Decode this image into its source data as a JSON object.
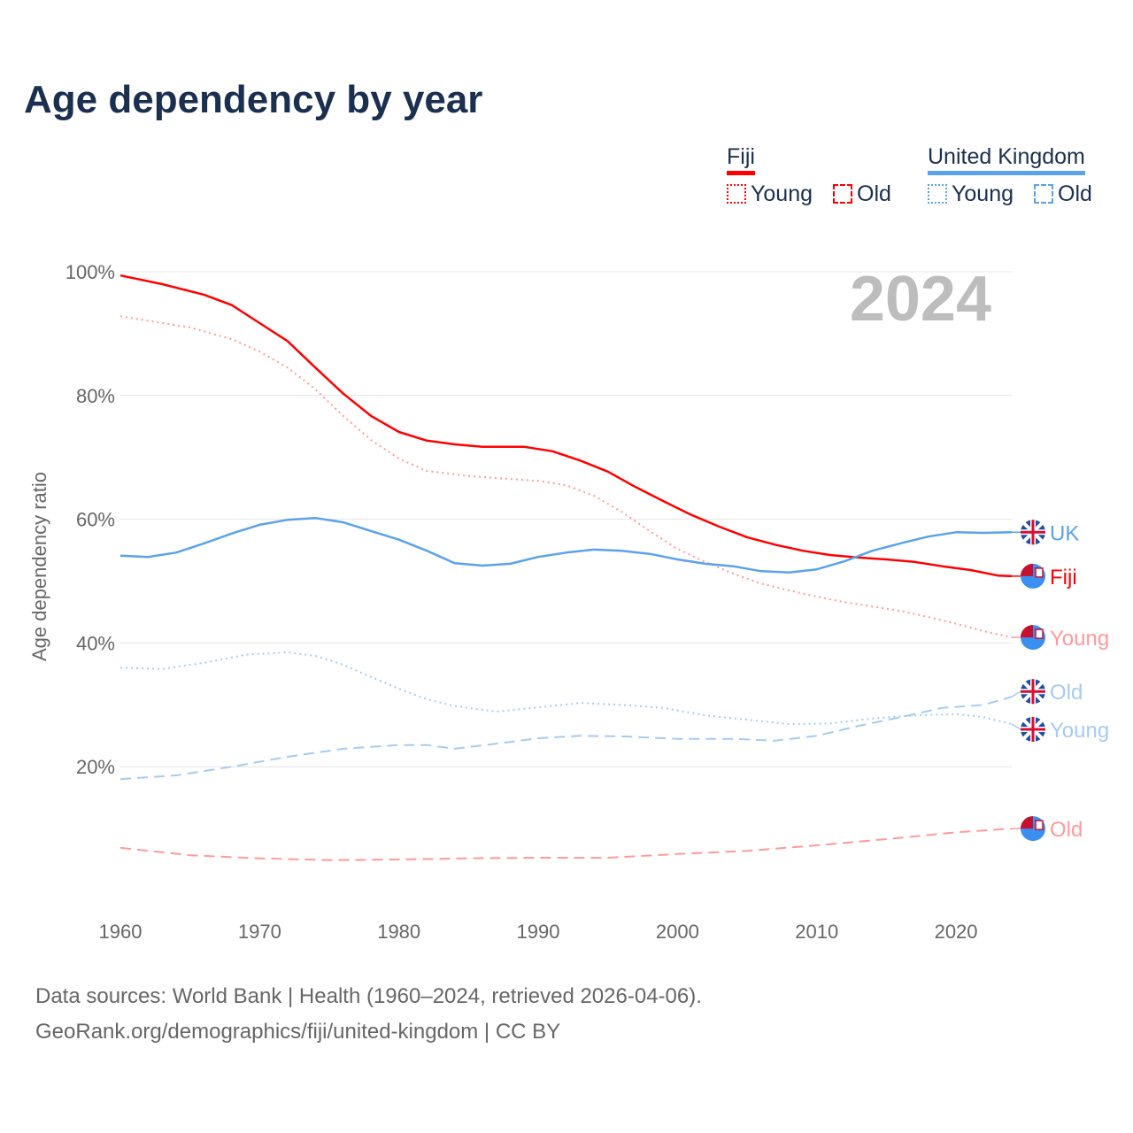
{
  "title": "Age dependency by year",
  "legend": {
    "groups": [
      {
        "name": "Fiji",
        "color": "#ff0000",
        "items": [
          "Young",
          "Old"
        ]
      },
      {
        "name": "United Kingdom",
        "color": "#5aa2ea",
        "items": [
          "Young",
          "Old"
        ]
      }
    ]
  },
  "footer": {
    "line1": "Data sources: World Bank | Health (1960–2024, retrieved 2026-04-06).",
    "line2": "GeoRank.org/demographics/fiji/united-kingdom | CC BY"
  },
  "chart_data": {
    "type": "line",
    "title": "Age dependency by year",
    "xlabel": "",
    "ylabel": "Age dependency ratio",
    "year_label": "2024",
    "xlim": [
      1960,
      2024
    ],
    "ylim": [
      0,
      100
    ],
    "xticks": [
      1960,
      1970,
      1980,
      1990,
      2000,
      2010,
      2020
    ],
    "yticks": [
      {
        "v": 20,
        "l": "20%"
      },
      {
        "v": 40,
        "l": "40%"
      },
      {
        "v": 60,
        "l": "60%"
      },
      {
        "v": 80,
        "l": "80%"
      },
      {
        "v": 100,
        "l": "100%"
      }
    ],
    "series": [
      {
        "name": "Fiji",
        "label": "Fiji",
        "country": "fiji",
        "color": "#ff0000",
        "dash": "solid",
        "x": [
          1960,
          1963,
          1966,
          1968,
          1970,
          1972,
          1974,
          1976,
          1978,
          1980,
          1982,
          1984,
          1986,
          1989,
          1991,
          1993,
          1995,
          1997,
          1999,
          2001,
          2003,
          2005,
          2007,
          2009,
          2011,
          2013,
          2015,
          2017,
          2019,
          2021,
          2023,
          2024
        ],
        "y": [
          99.4,
          98,
          96.3,
          94.6,
          91.7,
          88.8,
          84.5,
          80.3,
          76.7,
          74.1,
          72.7,
          72.1,
          71.7,
          71.7,
          71,
          69.5,
          67.7,
          65.2,
          62.9,
          60.7,
          58.8,
          57.1,
          55.9,
          54.9,
          54.2,
          53.8,
          53.5,
          53.1,
          52.4,
          51.8,
          50.9,
          50.8
        ]
      },
      {
        "name": "Fiji Young",
        "label": "Young",
        "country": "fiji",
        "color": "#ff9a9a",
        "dash": "dot",
        "x": [
          1960,
          1965,
          1968,
          1970,
          1972,
          1974,
          1976,
          1978,
          1980,
          1982,
          1985,
          1988,
          1990,
          1992,
          1994,
          1996,
          1998,
          2000,
          2002,
          2004,
          2006,
          2008,
          2010,
          2012,
          2014,
          2016,
          2018,
          2020,
          2022,
          2024
        ],
        "y": [
          92.8,
          91,
          89.1,
          87.1,
          84.5,
          81,
          76.7,
          72.8,
          69.8,
          67.8,
          67,
          66.5,
          66.2,
          65.5,
          63.8,
          61.2,
          58.1,
          55.2,
          53.1,
          51.2,
          49.6,
          48.5,
          47.5,
          46.6,
          45.9,
          45.2,
          44.2,
          43.1,
          41.9,
          40.9
        ]
      },
      {
        "name": "Fiji Old",
        "label": "Old",
        "country": "fiji",
        "color": "#ff9a9a",
        "dash": "dash",
        "x": [
          1960,
          1965,
          1970,
          1975,
          1980,
          1985,
          1990,
          1995,
          2000,
          2005,
          2010,
          2015,
          2020,
          2024
        ],
        "y": [
          6.9,
          5.7,
          5.2,
          4.9,
          5,
          5.2,
          5.3,
          5.3,
          5.9,
          6.4,
          7.3,
          8.3,
          9.4,
          10
        ]
      },
      {
        "name": "United Kingdom",
        "label": "UK",
        "country": "uk",
        "color": "#5aa2ea",
        "dash": "solid",
        "x": [
          1960,
          1962,
          1964,
          1966,
          1968,
          1970,
          1972,
          1974,
          1976,
          1978,
          1980,
          1982,
          1984,
          1986,
          1988,
          1990,
          1992,
          1994,
          1996,
          1998,
          2000,
          2002,
          2004,
          2006,
          2008,
          2010,
          2012,
          2014,
          2016,
          2018,
          2020,
          2022,
          2024
        ],
        "y": [
          54.1,
          53.9,
          54.6,
          56.1,
          57.7,
          59.1,
          59.9,
          60.2,
          59.5,
          58.1,
          56.7,
          54.9,
          52.9,
          52.5,
          52.8,
          53.9,
          54.6,
          55.1,
          54.9,
          54.4,
          53.5,
          52.8,
          52.4,
          51.6,
          51.4,
          51.9,
          53.2,
          54.9,
          56.1,
          57.2,
          57.9,
          57.8,
          57.9
        ]
      },
      {
        "name": "United Kingdom Young",
        "label": "Young",
        "country": "uk",
        "color": "#a6cbf1",
        "dash": "dot",
        "x": [
          1960,
          1963,
          1966,
          1969,
          1972,
          1974,
          1976,
          1978,
          1980,
          1982,
          1984,
          1987,
          1990,
          1993,
          1996,
          1999,
          2002,
          2005,
          2008,
          2011,
          2014,
          2017,
          2020,
          2022,
          2024
        ],
        "y": [
          36,
          35.8,
          36.8,
          38.1,
          38.5,
          37.9,
          36.5,
          34.5,
          32.6,
          30.9,
          29.8,
          28.9,
          29.6,
          30.3,
          30,
          29.5,
          28.3,
          27.6,
          26.9,
          27,
          27.8,
          28.3,
          28.5,
          28,
          26.9
        ]
      },
      {
        "name": "United Kingdom Old",
        "label": "Old",
        "country": "uk",
        "color": "#a6cbf1",
        "dash": "dash",
        "x": [
          1960,
          1964,
          1968,
          1972,
          1976,
          1980,
          1982,
          1984,
          1988,
          1990,
          1993,
          1996,
          2000,
          2004,
          2007,
          2010,
          2013,
          2016,
          2019,
          2022,
          2024
        ],
        "y": [
          18,
          18.6,
          20,
          21.6,
          22.9,
          23.5,
          23.5,
          22.9,
          24,
          24.6,
          25,
          24.9,
          24.5,
          24.5,
          24.2,
          25,
          26.6,
          28,
          29.5,
          30,
          31.3
        ]
      }
    ]
  }
}
